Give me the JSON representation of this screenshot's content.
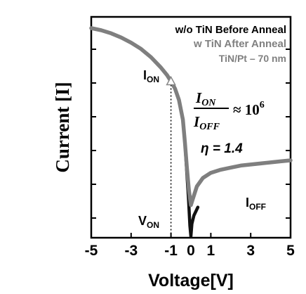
{
  "chart_data": {
    "type": "line",
    "xlabel": "Voltage[V]",
    "ylabel": "Current [I]",
    "xlim": [
      -5,
      5
    ],
    "x_ticks": [
      -5,
      -3,
      -1,
      0,
      1,
      3,
      5
    ],
    "x_tick_labels": [
      "-5",
      "-3",
      "-1",
      "0",
      "1",
      "3",
      "5"
    ],
    "y_scale": "log",
    "y_ticks_labeled": false,
    "grid": false,
    "legend_position": "top-right",
    "series": [
      {
        "name": "w/o TiN Before Anneal",
        "color": "#111111",
        "x": [
          -5,
          -4.5,
          -4,
          -3.5,
          -3,
          -2.5,
          -2,
          -1.5,
          -1.2,
          -1.0,
          -0.8,
          -0.6,
          -0.4,
          -0.3,
          -0.2,
          -0.12,
          -0.05,
          0.0,
          0.05,
          0.15,
          0.35
        ],
        "y": [
          1.0,
          0.99,
          0.975,
          0.955,
          0.93,
          0.9,
          0.86,
          0.81,
          0.775,
          0.745,
          0.71,
          0.655,
          0.56,
          0.45,
          0.3,
          0.18,
          0.05,
          0.0,
          0.06,
          0.1,
          0.14
        ]
      },
      {
        "name": "w TiN After Anneal",
        "color": "#7f7f7f",
        "x": [
          -5,
          -4.5,
          -4,
          -3.5,
          -3,
          -2.5,
          -2,
          -1.5,
          -1.2,
          -1.0,
          -0.8,
          -0.6,
          -0.4,
          -0.3,
          -0.2,
          -0.1,
          0.0,
          0.1,
          0.3,
          0.6,
          1.0,
          1.5,
          2.0,
          2.5,
          3.0,
          3.5,
          4.0,
          4.5,
          5.0
        ],
        "y": [
          1.0,
          0.99,
          0.975,
          0.955,
          0.93,
          0.9,
          0.86,
          0.81,
          0.775,
          0.745,
          0.71,
          0.655,
          0.56,
          0.45,
          0.33,
          0.22,
          0.15,
          0.18,
          0.24,
          0.28,
          0.305,
          0.32,
          0.33,
          0.34,
          0.345,
          0.35,
          0.355,
          0.36,
          0.365
        ]
      }
    ],
    "legend": [
      "w/o TiN Before Anneal",
      "w TiN After Anneal",
      "TiN/Pt – 70 nm"
    ],
    "annotations": {
      "ion_main": "I",
      "ion_sub": "ON",
      "von_main": "V",
      "von_sub": "ON",
      "ioff_main": "I",
      "ioff_sub": "OFF",
      "ratio_num_main": "I",
      "ratio_num_sub": "ON",
      "ratio_den_main": "I",
      "ratio_den_sub": "OFF",
      "ratio_rhs": "≈ 10",
      "ratio_exp": "6",
      "eta": "η = 1.4"
    },
    "von_x": -1.0
  }
}
